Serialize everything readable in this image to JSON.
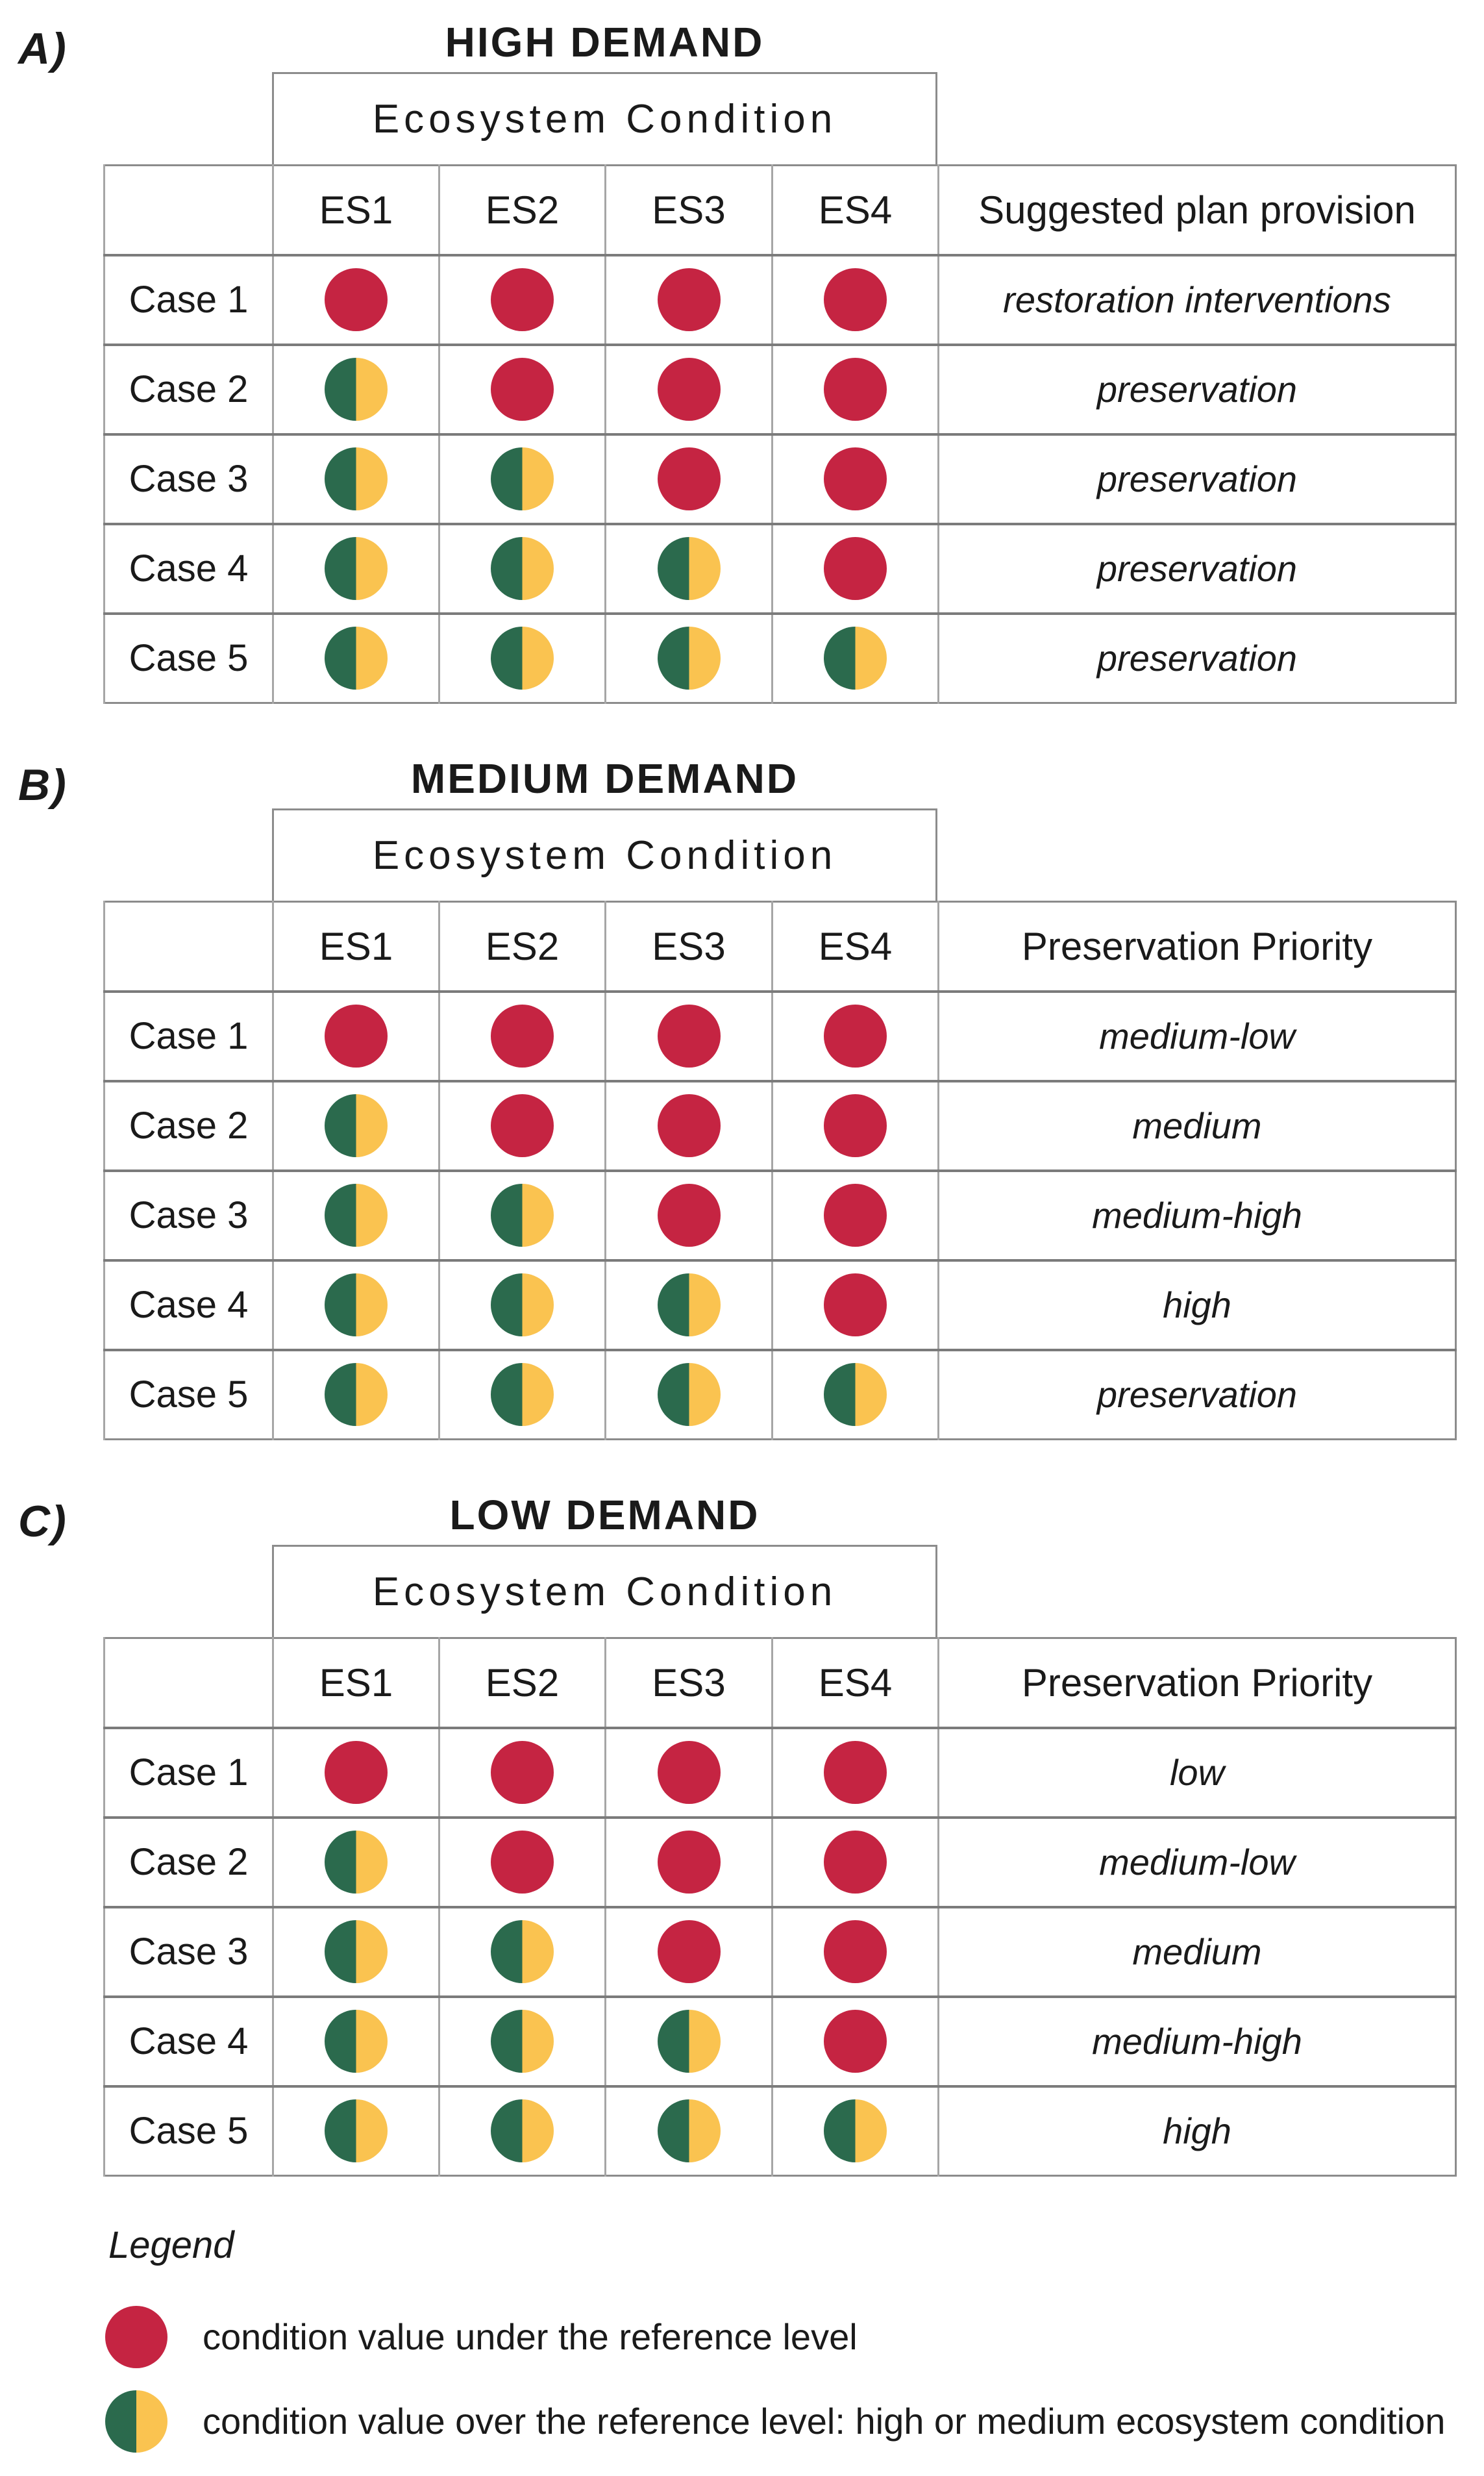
{
  "figure": {
    "condition_header": "Ecosystem Condition",
    "es_columns": [
      "ES1",
      "ES2",
      "ES3",
      "ES4"
    ],
    "panels": [
      {
        "label": "A)",
        "title": "HIGH DEMAND",
        "value_header": "Suggested plan provision",
        "rows": [
          {
            "case": "Case 1",
            "dots": [
              "red",
              "red",
              "red",
              "red"
            ],
            "value": "restoration interventions"
          },
          {
            "case": "Case 2",
            "dots": [
              "split",
              "red",
              "red",
              "red"
            ],
            "value": "preservation"
          },
          {
            "case": "Case 3",
            "dots": [
              "split",
              "split",
              "red",
              "red"
            ],
            "value": "preservation"
          },
          {
            "case": "Case 4",
            "dots": [
              "split",
              "split",
              "split",
              "red"
            ],
            "value": "preservation"
          },
          {
            "case": "Case 5",
            "dots": [
              "split",
              "split",
              "split",
              "split"
            ],
            "value": "preservation"
          }
        ]
      },
      {
        "label": "B)",
        "title": "MEDIUM DEMAND",
        "value_header": "Preservation Priority",
        "rows": [
          {
            "case": "Case 1",
            "dots": [
              "red",
              "red",
              "red",
              "red"
            ],
            "value": "medium-low"
          },
          {
            "case": "Case 2",
            "dots": [
              "split",
              "red",
              "red",
              "red"
            ],
            "value": "medium"
          },
          {
            "case": "Case 3",
            "dots": [
              "split",
              "split",
              "red",
              "red"
            ],
            "value": "medium-high"
          },
          {
            "case": "Case 4",
            "dots": [
              "split",
              "split",
              "split",
              "red"
            ],
            "value": "high"
          },
          {
            "case": "Case 5",
            "dots": [
              "split",
              "split",
              "split",
              "split"
            ],
            "value": "preservation"
          }
        ]
      },
      {
        "label": "C)",
        "title": "LOW DEMAND",
        "value_header": "Preservation Priority",
        "rows": [
          {
            "case": "Case 1",
            "dots": [
              "red",
              "red",
              "red",
              "red"
            ],
            "value": "low"
          },
          {
            "case": "Case 2",
            "dots": [
              "split",
              "red",
              "red",
              "red"
            ],
            "value": "medium-low"
          },
          {
            "case": "Case 3",
            "dots": [
              "split",
              "split",
              "red",
              "red"
            ],
            "value": "medium"
          },
          {
            "case": "Case 4",
            "dots": [
              "split",
              "split",
              "split",
              "red"
            ],
            "value": "medium-high"
          },
          {
            "case": "Case 5",
            "dots": [
              "split",
              "split",
              "split",
              "split"
            ],
            "value": "high"
          }
        ]
      }
    ],
    "legend": {
      "title": "Legend",
      "items": [
        {
          "marker": "red-dot",
          "label": "condition value under the reference level"
        },
        {
          "marker": "split-dot",
          "label": "condition value over the reference level: high or medium ecosystem condition"
        }
      ]
    },
    "colors": {
      "red": "#c52442",
      "green": "#2b6a4d",
      "yellow": "#fac350"
    }
  }
}
